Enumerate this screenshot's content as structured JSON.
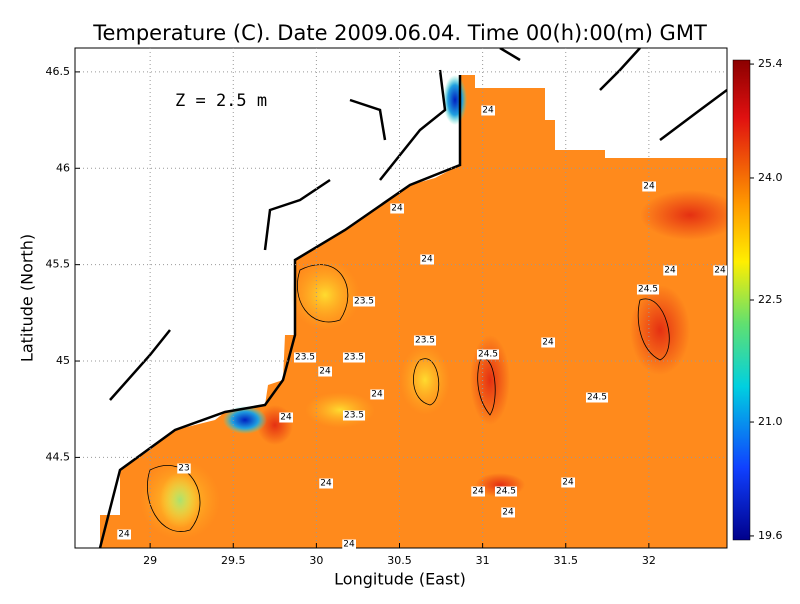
{
  "title": "Temperature (C). Date 2009.06.04. Time 00(h):00(m) GMT",
  "annotation": "Z = 2.5 m",
  "x_axis": {
    "label": "Longitude (East)",
    "lim": [
      28.548,
      32.47
    ],
    "ticks": [
      29,
      29.5,
      30,
      30.5,
      31,
      31.5,
      32
    ]
  },
  "y_axis": {
    "label": "Latitude (North)",
    "lim": [
      44.03,
      46.624
    ],
    "ticks": [
      44.5,
      45,
      45.5,
      46,
      46.5
    ]
  },
  "colorbar": {
    "lim": [
      19.55,
      25.45
    ],
    "ticks": [
      25.4,
      {
        "value": 24,
        "label": "24.0"
      },
      22.5,
      {
        "value": 21,
        "label": "21.0"
      },
      19.6
    ]
  },
  "contour_labels": [
    24,
    24,
    24,
    24,
    24,
    24,
    24.5,
    23.5,
    23.5,
    24,
    23.5,
    23.5,
    24.5,
    24,
    24,
    24.5,
    23.5,
    24,
    23,
    24,
    24,
    24,
    24.5,
    24,
    24,
    24
  ]
}
